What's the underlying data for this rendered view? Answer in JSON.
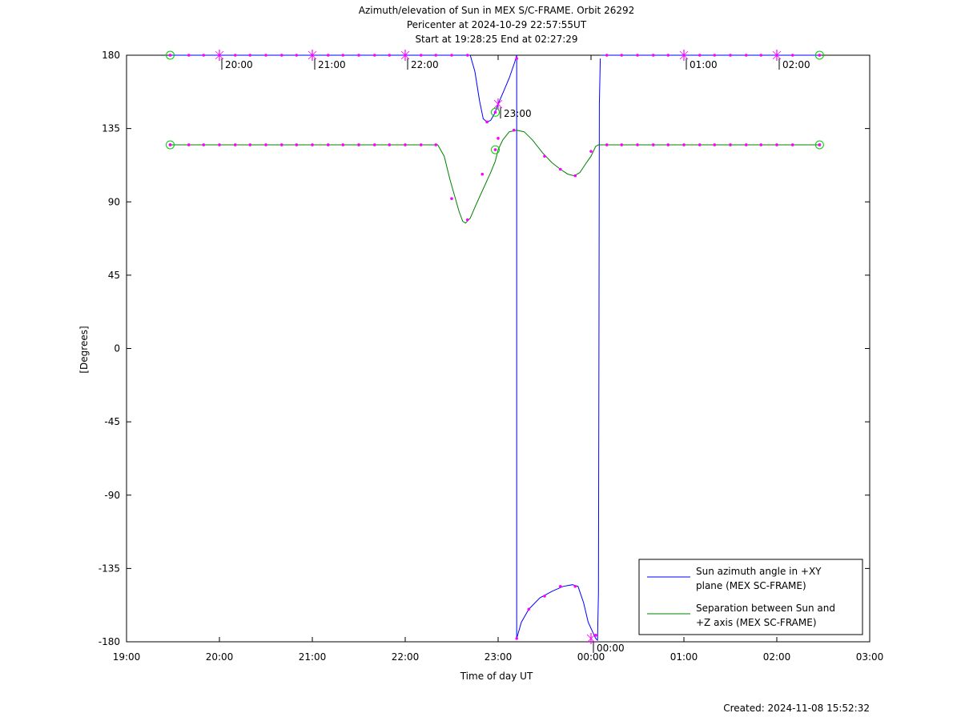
{
  "chart_data": {
    "type": "line",
    "title_lines": [
      "Azimuth/elevation of Sun in MEX S/C-FRAME.  Orbit 26292",
      "Pericenter at 2024-10-29 22:57:55UT",
      "Start at 19:28:25 End at 02:27:29"
    ],
    "xlabel": "Time of day UT",
    "ylabel": "[Degrees]",
    "xlim_hours": [
      19,
      27
    ],
    "ylim": [
      -180,
      180
    ],
    "x_ticks": [
      {
        "v": 19,
        "label": "19:00"
      },
      {
        "v": 20,
        "label": "20:00"
      },
      {
        "v": 21,
        "label": "21:00"
      },
      {
        "v": 22,
        "label": "22:00"
      },
      {
        "v": 23,
        "label": "23:00"
      },
      {
        "v": 24,
        "label": "00:00"
      },
      {
        "v": 25,
        "label": "01:00"
      },
      {
        "v": 26,
        "label": "02:00"
      },
      {
        "v": 27,
        "label": "03:00"
      }
    ],
    "y_ticks": [
      {
        "v": 180,
        "label": "180"
      },
      {
        "v": 135,
        "label": "135"
      },
      {
        "v": 90,
        "label": "90"
      },
      {
        "v": 45,
        "label": "45"
      },
      {
        "v": 0,
        "label": "0"
      },
      {
        "v": -45,
        "label": "-45"
      },
      {
        "v": -90,
        "label": "-90"
      },
      {
        "v": -135,
        "label": "-135"
      },
      {
        "v": -180,
        "label": "-180"
      }
    ],
    "hour_annotations": [
      {
        "x": 20.0,
        "y": 180,
        "label": "20:00"
      },
      {
        "x": 21.0,
        "y": 180,
        "label": "21:00"
      },
      {
        "x": 22.0,
        "y": 180,
        "label": "22:00"
      },
      {
        "x": 23.0,
        "y": 150,
        "label": "23:00"
      },
      {
        "x": 24.0,
        "y": -178,
        "label": "00:00"
      },
      {
        "x": 25.0,
        "y": 180,
        "label": "01:00"
      },
      {
        "x": 26.0,
        "y": 180,
        "label": "02:00"
      }
    ],
    "series": [
      {
        "name": "Sun azimuth angle in +XY plane (MEX SC-FRAME)",
        "color": "#0000ff",
        "segments": [
          [
            [
              19.47,
              180
            ],
            [
              21.5,
              180
            ],
            [
              22.7,
              180
            ],
            [
              22.75,
              170
            ],
            [
              22.8,
              152
            ],
            [
              22.84,
              141
            ],
            [
              22.88,
              139
            ],
            [
              22.92,
              140
            ],
            [
              22.96,
              144
            ],
            [
              23.0,
              150
            ],
            [
              23.06,
              158
            ],
            [
              23.12,
              166
            ],
            [
              23.18,
              176
            ],
            [
              23.2,
              180
            ]
          ],
          [
            [
              23.2,
              180
            ],
            [
              23.2,
              -178
            ]
          ],
          [
            [
              23.2,
              -178
            ],
            [
              23.25,
              -168
            ],
            [
              23.33,
              -160
            ],
            [
              23.45,
              -153
            ],
            [
              23.58,
              -149
            ],
            [
              23.7,
              -146
            ],
            [
              23.8,
              -145
            ],
            [
              23.86,
              -146
            ],
            [
              23.92,
              -156
            ],
            [
              23.97,
              -168
            ],
            [
              24.05,
              -178
            ]
          ],
          [
            [
              24.05,
              -178
            ],
            [
              24.07,
              -179
            ],
            [
              24.08,
              -150
            ],
            [
              24.085,
              0
            ],
            [
              24.09,
              150
            ],
            [
              24.1,
              178
            ]
          ],
          [
            [
              24.1,
              180
            ],
            [
              25.0,
              180
            ],
            [
              26.46,
              180
            ]
          ]
        ],
        "markers": [
          [
            19.47,
            180
          ],
          [
            19.67,
            180
          ],
          [
            19.83,
            180
          ],
          [
            20.0,
            180
          ],
          [
            20.17,
            180
          ],
          [
            20.33,
            180
          ],
          [
            20.5,
            180
          ],
          [
            20.67,
            180
          ],
          [
            20.83,
            180
          ],
          [
            21.0,
            180
          ],
          [
            21.17,
            180
          ],
          [
            21.33,
            180
          ],
          [
            21.5,
            180
          ],
          [
            21.67,
            180
          ],
          [
            21.83,
            180
          ],
          [
            22.0,
            180
          ],
          [
            22.17,
            180
          ],
          [
            22.33,
            180
          ],
          [
            22.5,
            180
          ],
          [
            22.67,
            180
          ],
          [
            22.88,
            139
          ],
          [
            23.2,
            178
          ],
          [
            23.2,
            -178
          ],
          [
            23.33,
            -160
          ],
          [
            23.5,
            -152
          ],
          [
            23.67,
            -146
          ],
          [
            23.83,
            -146
          ],
          [
            24.05,
            -176
          ],
          [
            24.17,
            180
          ],
          [
            24.33,
            180
          ],
          [
            24.5,
            180
          ],
          [
            24.67,
            180
          ],
          [
            24.83,
            180
          ],
          [
            25.0,
            180
          ],
          [
            25.17,
            180
          ],
          [
            25.33,
            180
          ],
          [
            25.5,
            180
          ],
          [
            25.67,
            180
          ],
          [
            25.83,
            180
          ],
          [
            26.0,
            180
          ],
          [
            26.17,
            180
          ],
          [
            26.46,
            180
          ]
        ]
      },
      {
        "name": "Separation between Sun and +Z axis (MEX SC-FRAME)",
        "color": "#008000",
        "segments": [
          [
            [
              19.47,
              125
            ],
            [
              20.5,
              125
            ],
            [
              21.5,
              125
            ],
            [
              22.35,
              125
            ],
            [
              22.42,
              118
            ],
            [
              22.48,
              104
            ],
            [
              22.53,
              94
            ],
            [
              22.58,
              84
            ],
            [
              22.62,
              78
            ],
            [
              22.65,
              77
            ],
            [
              22.7,
              80
            ],
            [
              22.76,
              88
            ],
            [
              22.84,
              98
            ],
            [
              22.92,
              108
            ],
            [
              22.97,
              115
            ],
            [
              23.0,
              122
            ],
            [
              23.05,
              128
            ],
            [
              23.12,
              133
            ],
            [
              23.2,
              134
            ],
            [
              23.28,
              133
            ],
            [
              23.37,
              128
            ],
            [
              23.48,
              120
            ],
            [
              23.58,
              114
            ],
            [
              23.67,
              110
            ],
            [
              23.75,
              107
            ],
            [
              23.82,
              106
            ],
            [
              23.88,
              108
            ],
            [
              23.95,
              114
            ],
            [
              24.0,
              118
            ],
            [
              24.05,
              124
            ],
            [
              24.08,
              125
            ],
            [
              24.5,
              125
            ],
            [
              25.5,
              125
            ],
            [
              26.46,
              125
            ]
          ]
        ],
        "markers": [
          [
            19.47,
            125
          ],
          [
            19.67,
            125
          ],
          [
            19.83,
            125
          ],
          [
            20.0,
            125
          ],
          [
            20.17,
            125
          ],
          [
            20.33,
            125
          ],
          [
            20.5,
            125
          ],
          [
            20.67,
            125
          ],
          [
            20.83,
            125
          ],
          [
            21.0,
            125
          ],
          [
            21.17,
            125
          ],
          [
            21.33,
            125
          ],
          [
            21.5,
            125
          ],
          [
            21.67,
            125
          ],
          [
            21.83,
            125
          ],
          [
            22.0,
            125
          ],
          [
            22.17,
            125
          ],
          [
            22.33,
            125
          ],
          [
            22.5,
            92
          ],
          [
            22.67,
            79
          ],
          [
            22.83,
            107
          ],
          [
            23.0,
            129
          ],
          [
            23.17,
            134
          ],
          [
            23.5,
            118
          ],
          [
            23.67,
            110
          ],
          [
            23.83,
            106
          ],
          [
            24.0,
            121
          ],
          [
            24.17,
            125
          ],
          [
            24.33,
            125
          ],
          [
            24.5,
            125
          ],
          [
            24.67,
            125
          ],
          [
            24.83,
            125
          ],
          [
            25.0,
            125
          ],
          [
            25.17,
            125
          ],
          [
            25.33,
            125
          ],
          [
            25.5,
            125
          ],
          [
            25.67,
            125
          ],
          [
            25.83,
            125
          ],
          [
            26.0,
            125
          ],
          [
            26.17,
            125
          ],
          [
            26.46,
            125
          ]
        ]
      }
    ],
    "marker_color": "#ff00ff",
    "circle_markers": [
      {
        "x": 19.47,
        "y": 180
      },
      {
        "x": 19.47,
        "y": 125
      },
      {
        "x": 26.46,
        "y": 180
      },
      {
        "x": 26.46,
        "y": 125
      },
      {
        "x": 22.97,
        "y": 145
      },
      {
        "x": 22.97,
        "y": 122
      }
    ],
    "circle_color": "#00cc00",
    "legend": {
      "placement": "bottom-right",
      "entries": [
        {
          "lines": [
            "Sun azimuth angle in +XY",
            "plane (MEX SC-FRAME)"
          ],
          "color": "#0000ff"
        },
        {
          "lines": [
            "Separation between Sun and",
            "+Z axis (MEX SC-FRAME)"
          ],
          "color": "#008000"
        }
      ]
    }
  },
  "footer": {
    "created": "Created: 2024-11-08 15:52:32"
  }
}
